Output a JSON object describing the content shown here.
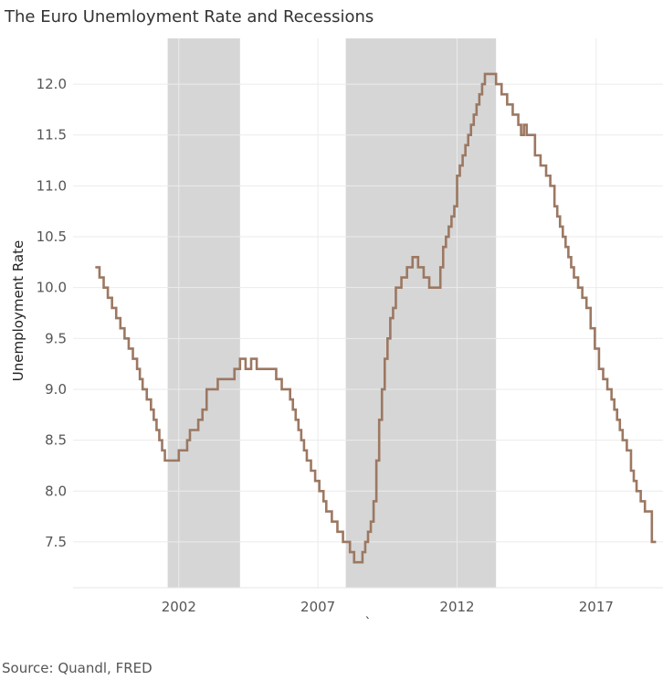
{
  "title": "The Euro Unemloyment Rate and Recessions",
  "source": "Source: Quandl, FRED",
  "chart_data": {
    "type": "line",
    "title": "The Euro Unemloyment Rate and Recessions",
    "xlabel": "`",
    "ylabel": "Unemployment Rate",
    "xlim": [
      1998.2,
      2019.4
    ],
    "ylim": [
      7.05,
      12.45
    ],
    "x_ticks": [
      "2002",
      "2007",
      "2012",
      "2017"
    ],
    "x_tick_values": [
      2002,
      2007,
      2012,
      2017
    ],
    "y_ticks": [
      "7.5",
      "8.0",
      "8.5",
      "9.0",
      "9.5",
      "10.0",
      "10.5",
      "11.0",
      "11.5",
      "12.0"
    ],
    "y_tick_values": [
      7.5,
      8.0,
      8.5,
      9.0,
      9.5,
      10.0,
      10.5,
      11.0,
      11.5,
      12.0
    ],
    "grid": true,
    "line_color": "#9c7862",
    "recession_color": "#d6d6d6",
    "recessions": [
      {
        "start": 2001.6,
        "end": 2004.2
      },
      {
        "start": 2008.0,
        "end": 2013.4
      }
    ],
    "series": [
      {
        "x": [
          1999.0,
          1999.15,
          1999.3,
          1999.45,
          1999.6,
          1999.75,
          1999.9,
          2000.05,
          2000.2,
          2000.35,
          2000.5,
          2000.6,
          2000.7,
          2000.85,
          2001.0,
          2001.1,
          2001.2,
          2001.3,
          2001.4,
          2001.5,
          2001.6,
          2001.7,
          2001.85,
          2002.0,
          2002.1,
          2002.3,
          2002.4,
          2002.5,
          2002.7,
          2002.85,
          2003.0,
          2003.2,
          2003.4,
          2003.6,
          2003.8,
          2004.0,
          2004.2,
          2004.4,
          2004.6,
          2004.8,
          2005.0,
          2005.3,
          2005.5,
          2005.7,
          2005.9,
          2006.0,
          2006.1,
          2006.2,
          2006.3,
          2006.4,
          2006.5,
          2006.6,
          2006.75,
          2006.9,
          2007.05,
          2007.2,
          2007.3,
          2007.5,
          2007.7,
          2007.9,
          2008.0,
          2008.15,
          2008.3,
          2008.4,
          2008.5,
          2008.6,
          2008.7,
          2008.8,
          2008.9,
          2009.0,
          2009.1,
          2009.2,
          2009.3,
          2009.4,
          2009.5,
          2009.6,
          2009.7,
          2009.8,
          2010.0,
          2010.2,
          2010.4,
          2010.6,
          2010.8,
          2011.0,
          2011.2,
          2011.4,
          2011.5,
          2011.6,
          2011.7,
          2011.8,
          2011.9,
          2012.0,
          2012.1,
          2012.2,
          2012.3,
          2012.4,
          2012.5,
          2012.6,
          2012.7,
          2012.8,
          2012.9,
          2013.0,
          2013.2,
          2013.4,
          2013.6,
          2013.8,
          2014.0,
          2014.2,
          2014.3,
          2014.4,
          2014.5,
          2014.6,
          2014.8,
          2015.0,
          2015.2,
          2015.35,
          2015.5,
          2015.6,
          2015.7,
          2015.8,
          2015.9,
          2016.0,
          2016.1,
          2016.2,
          2016.35,
          2016.5,
          2016.65,
          2016.8,
          2016.95,
          2017.1,
          2017.25,
          2017.4,
          2017.55,
          2017.65,
          2017.75,
          2017.85,
          2017.95,
          2018.1,
          2018.25,
          2018.35,
          2018.45,
          2018.6,
          2018.75,
          2019.0,
          2019.15
        ],
        "values": [
          10.2,
          10.1,
          10.0,
          9.9,
          9.8,
          9.7,
          9.6,
          9.5,
          9.4,
          9.3,
          9.2,
          9.1,
          9.0,
          8.9,
          8.8,
          8.7,
          8.6,
          8.5,
          8.4,
          8.3,
          8.3,
          8.3,
          8.3,
          8.4,
          8.4,
          8.5,
          8.6,
          8.6,
          8.7,
          8.8,
          9.0,
          9.0,
          9.1,
          9.1,
          9.1,
          9.2,
          9.3,
          9.2,
          9.3,
          9.2,
          9.2,
          9.2,
          9.1,
          9.0,
          9.0,
          8.9,
          8.8,
          8.7,
          8.6,
          8.5,
          8.4,
          8.3,
          8.2,
          8.1,
          8.0,
          7.9,
          7.8,
          7.7,
          7.6,
          7.5,
          7.5,
          7.4,
          7.3,
          7.3,
          7.3,
          7.4,
          7.5,
          7.6,
          7.7,
          7.9,
          8.3,
          8.7,
          9.0,
          9.3,
          9.5,
          9.7,
          9.8,
          10.0,
          10.1,
          10.2,
          10.3,
          10.2,
          10.1,
          10.0,
          10.0,
          10.2,
          10.4,
          10.5,
          10.6,
          10.7,
          10.8,
          11.1,
          11.2,
          11.3,
          11.4,
          11.5,
          11.6,
          11.7,
          11.8,
          11.9,
          12.0,
          12.1,
          12.1,
          12.0,
          11.9,
          11.8,
          11.7,
          11.6,
          11.5,
          11.6,
          11.5,
          11.5,
          11.3,
          11.2,
          11.1,
          11.0,
          10.8,
          10.7,
          10.6,
          10.5,
          10.4,
          10.3,
          10.2,
          10.1,
          10.0,
          9.9,
          9.8,
          9.6,
          9.4,
          9.2,
          9.1,
          9.0,
          8.9,
          8.8,
          8.7,
          8.6,
          8.5,
          8.4,
          8.2,
          8.1,
          8.0,
          7.9,
          7.8,
          7.5,
          7.5
        ]
      }
    ]
  }
}
